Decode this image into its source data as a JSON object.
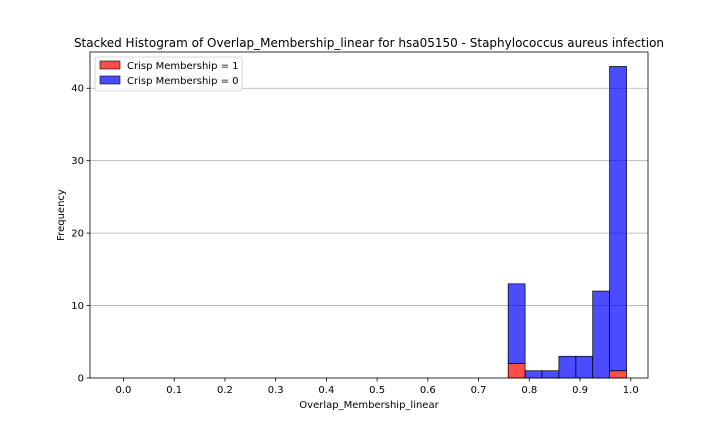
{
  "chart_data": {
    "type": "bar",
    "title": "Stacked Histogram of Overlap_Membership_linear for hsa05150 - Staphylococcus aureus infection",
    "xlabel": "Overlap_Membership_linear",
    "ylabel": "Frequency",
    "xlim": [
      -0.066,
      1.034
    ],
    "ylim": [
      0,
      45
    ],
    "xticks": [
      "0.0",
      "0.1",
      "0.2",
      "0.3",
      "0.4",
      "0.5",
      "0.6",
      "0.7",
      "0.8",
      "0.9",
      "1.0"
    ],
    "yticks": [
      "0",
      "10",
      "20",
      "30",
      "40"
    ],
    "grid": "y",
    "legend": "top-left",
    "bin_edges": [
      0.7583,
      0.7917,
      0.825,
      0.8583,
      0.8917,
      0.925,
      0.9583,
      0.9917
    ],
    "series": [
      {
        "name": "Crisp Membership = 1",
        "color": "#ff0000",
        "values": [
          2,
          0,
          0,
          0,
          0,
          0,
          1
        ]
      },
      {
        "name": "Crisp Membership = 0",
        "color": "#0000ff",
        "values": [
          11,
          1,
          1,
          3,
          3,
          12,
          42
        ]
      }
    ]
  }
}
